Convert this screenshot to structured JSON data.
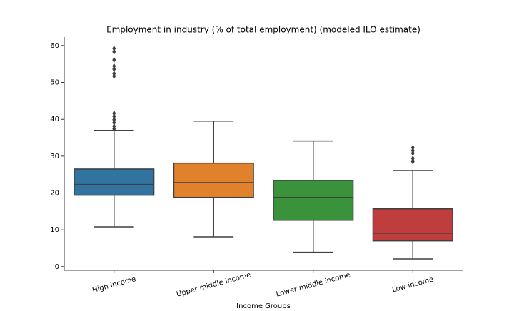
{
  "chart_data": {
    "type": "box",
    "title": "Employment in industry (% of total employment) (modeled ILO estimate)",
    "x_label": "Income Groups",
    "categories": [
      "High income",
      "Upper middle income",
      "Lower middle income",
      "Low income"
    ],
    "colors": [
      "#3274a1",
      "#e1812c",
      "#3a923a",
      "#c03d3e"
    ],
    "boxes": [
      {
        "min": 10.8,
        "q1": 19.4,
        "median": 22.3,
        "q3": 26.5,
        "max": 37.0,
        "outliers": [
          37.4,
          38.1,
          39.1,
          39.9,
          40.8,
          41.6,
          51.7,
          52.4,
          53.6,
          54.4,
          56.1,
          58.3,
          59.2
        ]
      },
      {
        "min": 8.1,
        "q1": 18.8,
        "median": 22.8,
        "q3": 28.1,
        "max": 39.5,
        "outliers": []
      },
      {
        "min": 3.9,
        "q1": 12.6,
        "median": 18.8,
        "q3": 23.4,
        "max": 34.1,
        "outliers": []
      },
      {
        "min": 2.1,
        "q1": 7.0,
        "median": 9.1,
        "q3": 15.7,
        "max": 26.1,
        "outliers": [
          28.5,
          29.4,
          30.8,
          31.5,
          32.3
        ]
      }
    ],
    "ylim": [
      -1,
      62.3
    ],
    "yticks": [
      0,
      10,
      20,
      30,
      40,
      50,
      60
    ]
  }
}
